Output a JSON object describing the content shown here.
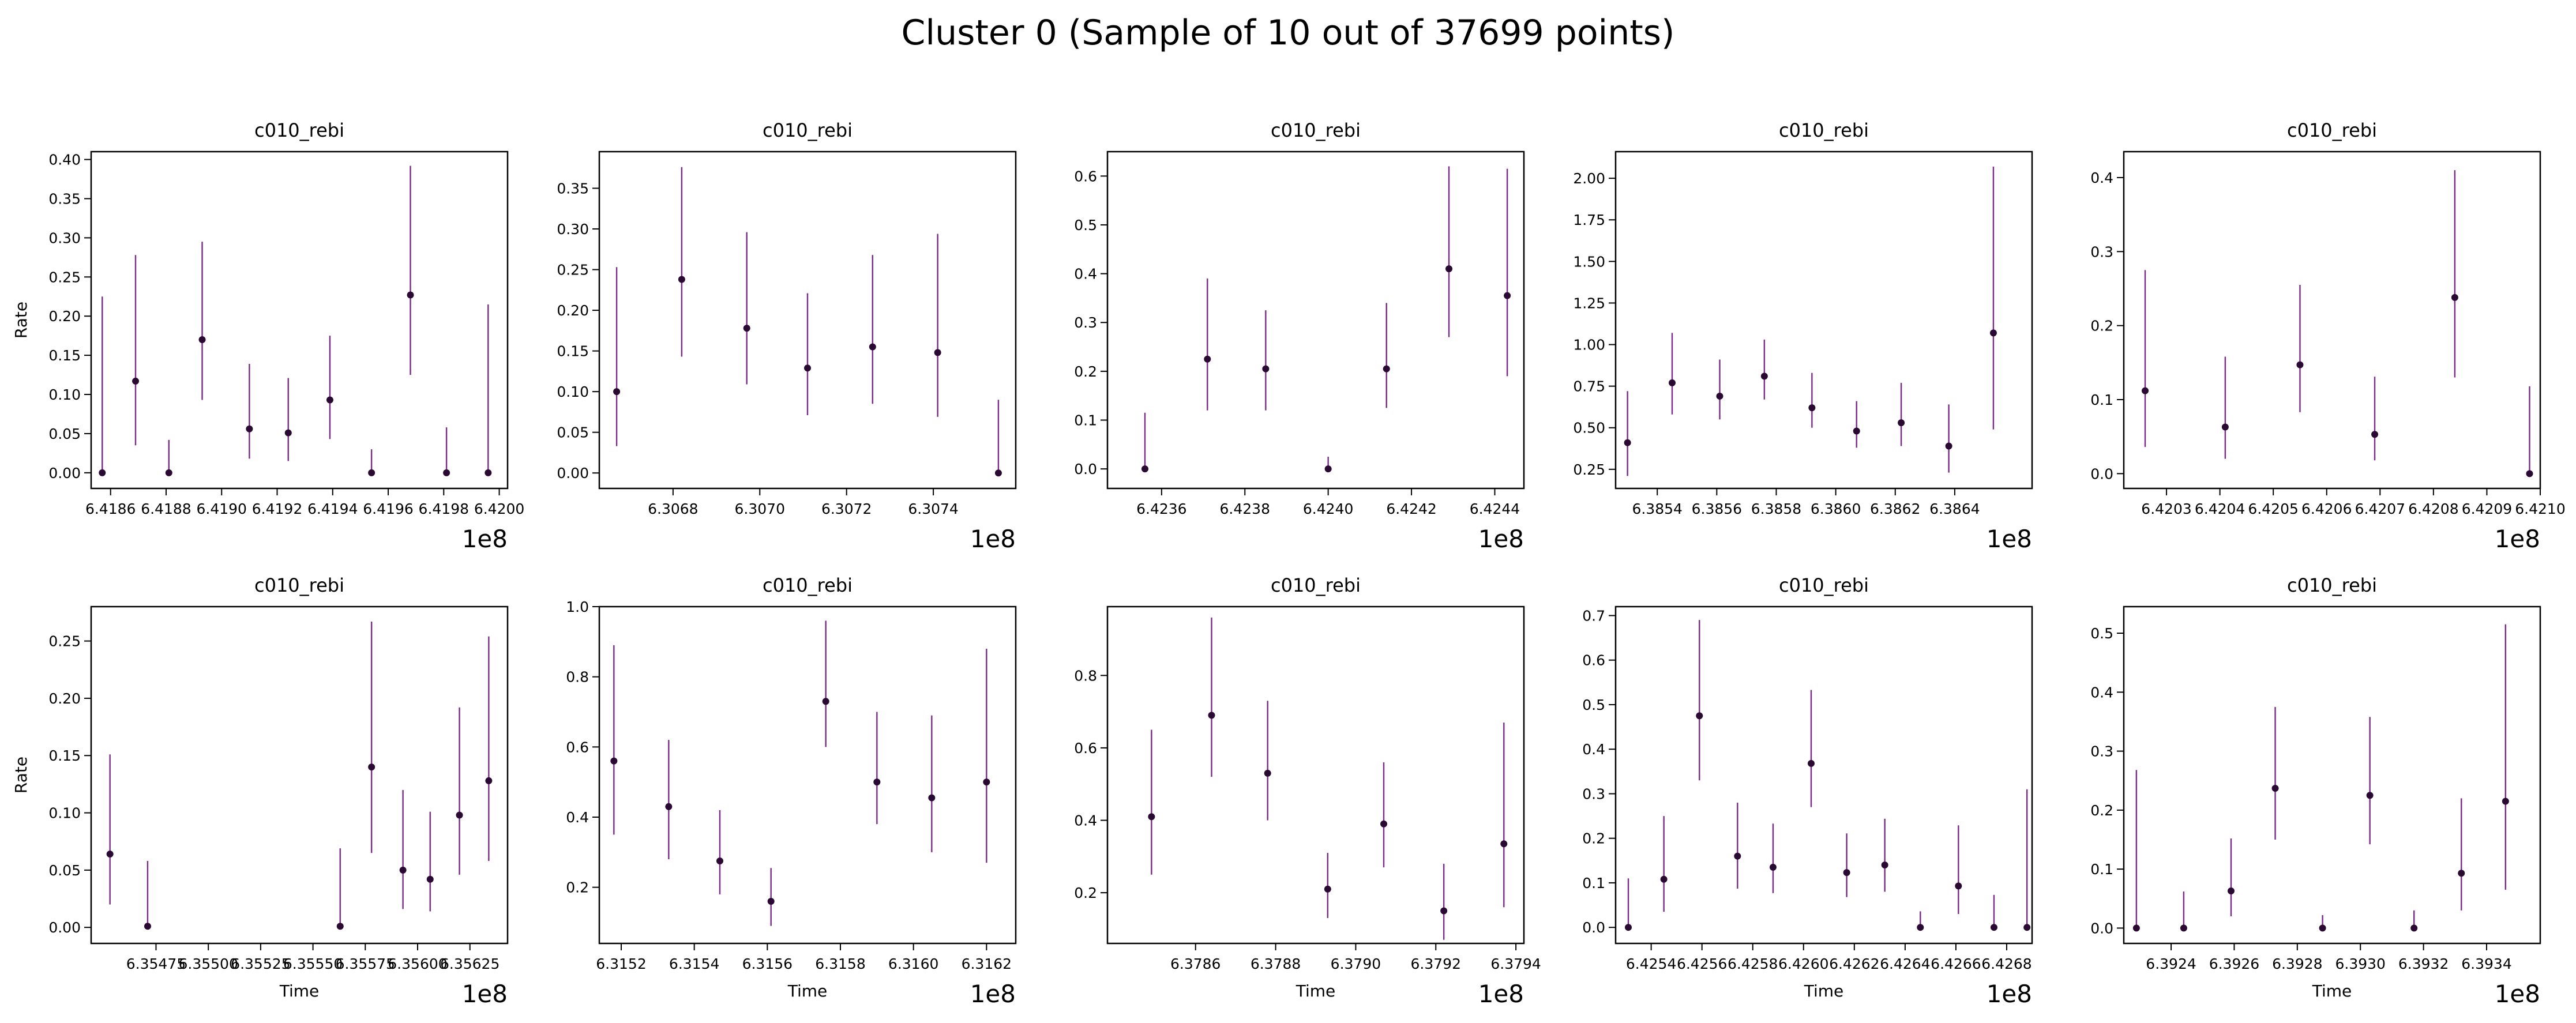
{
  "figure": {
    "title": "Cluster 0 (Sample of 10 out of 37699 points)",
    "colors": {
      "errorbar": "#7b2a8a",
      "point": "#2a0a33",
      "axis": "#000000"
    }
  },
  "chart_data": [
    {
      "type": "scatter",
      "title": "c010_rebi",
      "ylabel": "Rate",
      "xlabel": "",
      "offset_label": "1e8",
      "xlim": [
        6.41853,
        6.42003
      ],
      "ylim": [
        -0.02,
        0.41
      ],
      "xticks": [
        6.4186,
        6.4188,
        6.419,
        6.4192,
        6.4194,
        6.4196,
        6.4198,
        6.42
      ],
      "xtick_labels": [
        "6.4186",
        "6.4188",
        "6.4190",
        "6.4192",
        "6.4194",
        "6.4196",
        "6.4198",
        "6.4200"
      ],
      "yticks": [
        0,
        0.05,
        0.1,
        0.15,
        0.2,
        0.25,
        0.3,
        0.35,
        0.4
      ],
      "ytick_labels": [
        "0.00",
        "0.05",
        "0.10",
        "0.15",
        "0.20",
        "0.25",
        "0.30",
        "0.35",
        "0.40"
      ],
      "points": [
        {
          "x": 6.41857,
          "y": 0.0,
          "lo": 0.0,
          "hi": 0.225
        },
        {
          "x": 6.41869,
          "y": 0.117,
          "lo": 0.035,
          "hi": 0.278
        },
        {
          "x": 6.41881,
          "y": 0.0,
          "lo": 0.0,
          "hi": 0.042
        },
        {
          "x": 6.41893,
          "y": 0.17,
          "lo": 0.093,
          "hi": 0.295
        },
        {
          "x": 6.4191,
          "y": 0.056,
          "lo": 0.018,
          "hi": 0.139
        },
        {
          "x": 6.41924,
          "y": 0.051,
          "lo": 0.015,
          "hi": 0.121
        },
        {
          "x": 6.41939,
          "y": 0.093,
          "lo": 0.043,
          "hi": 0.175
        },
        {
          "x": 6.41954,
          "y": 0.0,
          "lo": 0.0,
          "hi": 0.03
        },
        {
          "x": 6.41968,
          "y": 0.227,
          "lo": 0.125,
          "hi": 0.392
        },
        {
          "x": 6.41981,
          "y": 0.0,
          "lo": 0.0,
          "hi": 0.058
        },
        {
          "x": 6.41996,
          "y": 0.0,
          "lo": 0.0,
          "hi": 0.215
        }
      ]
    },
    {
      "type": "scatter",
      "title": "c010_rebi",
      "ylabel": "",
      "xlabel": "",
      "offset_label": "1e8",
      "xlim": [
        6.30663,
        6.30759
      ],
      "ylim": [
        -0.019,
        0.395
      ],
      "xticks": [
        6.3068,
        6.307,
        6.3072,
        6.3074
      ],
      "xtick_labels": [
        "6.3068",
        "6.3070",
        "6.3072",
        "6.3074"
      ],
      "yticks": [
        0,
        0.05,
        0.1,
        0.15,
        0.2,
        0.25,
        0.3,
        0.35
      ],
      "ytick_labels": [
        "0.00",
        "0.05",
        "0.10",
        "0.15",
        "0.20",
        "0.25",
        "0.30",
        "0.35"
      ],
      "points": [
        {
          "x": 6.30667,
          "y": 0.1,
          "lo": 0.033,
          "hi": 0.253
        },
        {
          "x": 6.30682,
          "y": 0.238,
          "lo": 0.143,
          "hi": 0.376
        },
        {
          "x": 6.30697,
          "y": 0.178,
          "lo": 0.109,
          "hi": 0.296
        },
        {
          "x": 6.30711,
          "y": 0.129,
          "lo": 0.071,
          "hi": 0.221
        },
        {
          "x": 6.30726,
          "y": 0.155,
          "lo": 0.085,
          "hi": 0.268
        },
        {
          "x": 6.30741,
          "y": 0.148,
          "lo": 0.069,
          "hi": 0.294
        },
        {
          "x": 6.30755,
          "y": 0.0,
          "lo": 0.0,
          "hi": 0.09
        }
      ]
    },
    {
      "type": "scatter",
      "title": "c010_rebi",
      "ylabel": "",
      "xlabel": "",
      "offset_label": "1e8",
      "xlim": [
        6.42347,
        6.42447
      ],
      "ylim": [
        -0.04,
        0.65
      ],
      "xticks": [
        6.4236,
        6.4238,
        6.424,
        6.4242,
        6.4244
      ],
      "xtick_labels": [
        "6.4236",
        "6.4238",
        "6.4240",
        "6.4242",
        "6.4244"
      ],
      "yticks": [
        0,
        0.1,
        0.2,
        0.3,
        0.4,
        0.5,
        0.6
      ],
      "ytick_labels": [
        "0.0",
        "0.1",
        "0.2",
        "0.3",
        "0.4",
        "0.5",
        "0.6"
      ],
      "points": [
        {
          "x": 6.42356,
          "y": 0.0,
          "lo": 0.0,
          "hi": 0.115
        },
        {
          "x": 6.42371,
          "y": 0.225,
          "lo": 0.12,
          "hi": 0.39
        },
        {
          "x": 6.42385,
          "y": 0.205,
          "lo": 0.12,
          "hi": 0.325
        },
        {
          "x": 6.424,
          "y": 0.0,
          "lo": 0.0,
          "hi": 0.025
        },
        {
          "x": 6.42414,
          "y": 0.205,
          "lo": 0.125,
          "hi": 0.34
        },
        {
          "x": 6.42429,
          "y": 0.41,
          "lo": 0.27,
          "hi": 0.62
        },
        {
          "x": 6.42443,
          "y": 0.355,
          "lo": 0.19,
          "hi": 0.615
        }
      ]
    },
    {
      "type": "scatter",
      "title": "c010_rebi",
      "ylabel": "",
      "xlabel": "",
      "offset_label": "1e8",
      "xlim": [
        6.38526,
        6.38666
      ],
      "ylim": [
        0.135,
        2.16
      ],
      "xticks": [
        6.3854,
        6.3856,
        6.3858,
        6.386,
        6.3862,
        6.3864
      ],
      "xtick_labels": [
        "6.3854",
        "6.3856",
        "6.3858",
        "6.3860",
        "6.3862",
        "6.3864"
      ],
      "yticks": [
        0.25,
        0.5,
        0.75,
        1.0,
        1.25,
        1.5,
        1.75,
        2.0
      ],
      "ytick_labels": [
        "0.25",
        "0.50",
        "0.75",
        "1.00",
        "1.25",
        "1.50",
        "1.75",
        "2.00"
      ],
      "points": [
        {
          "x": 6.3853,
          "y": 0.41,
          "lo": 0.21,
          "hi": 0.72
        },
        {
          "x": 6.38545,
          "y": 0.77,
          "lo": 0.58,
          "hi": 1.07
        },
        {
          "x": 6.38561,
          "y": 0.69,
          "lo": 0.55,
          "hi": 0.91
        },
        {
          "x": 6.38576,
          "y": 0.81,
          "lo": 0.67,
          "hi": 1.03
        },
        {
          "x": 6.38592,
          "y": 0.62,
          "lo": 0.5,
          "hi": 0.83
        },
        {
          "x": 6.38607,
          "y": 0.48,
          "lo": 0.38,
          "hi": 0.66
        },
        {
          "x": 6.38622,
          "y": 0.53,
          "lo": 0.39,
          "hi": 0.77
        },
        {
          "x": 6.38638,
          "y": 0.39,
          "lo": 0.23,
          "hi": 0.64
        },
        {
          "x": 6.38653,
          "y": 1.07,
          "lo": 0.49,
          "hi": 2.07
        }
      ]
    },
    {
      "type": "scatter",
      "title": "c010_rebi",
      "ylabel": "",
      "xlabel": "",
      "offset_label": "1e8",
      "xlim": [
        6.42022,
        6.421
      ],
      "ylim": [
        -0.02,
        0.435
      ],
      "xticks": [
        6.4203,
        6.4204,
        6.4205,
        6.4206,
        6.4207,
        6.4208,
        6.4209,
        6.421
      ],
      "xtick_labels": [
        "6.4203",
        "6.4204",
        "6.4205",
        "6.4206",
        "6.4207",
        "6.4208",
        "6.4209",
        "6.4210"
      ],
      "yticks": [
        0,
        0.1,
        0.2,
        0.3,
        0.4
      ],
      "ytick_labels": [
        "0.0",
        "0.1",
        "0.2",
        "0.3",
        "0.4"
      ],
      "points": [
        {
          "x": 6.42026,
          "y": 0.112,
          "lo": 0.036,
          "hi": 0.275
        },
        {
          "x": 6.42041,
          "y": 0.063,
          "lo": 0.02,
          "hi": 0.158
        },
        {
          "x": 6.42055,
          "y": 0.147,
          "lo": 0.083,
          "hi": 0.255
        },
        {
          "x": 6.42069,
          "y": 0.053,
          "lo": 0.018,
          "hi": 0.131
        },
        {
          "x": 6.42084,
          "y": 0.238,
          "lo": 0.13,
          "hi": 0.41
        },
        {
          "x": 6.42098,
          "y": 0.0,
          "lo": 0.0,
          "hi": 0.118
        }
      ]
    },
    {
      "type": "scatter",
      "title": "c010_rebi",
      "ylabel": "Rate",
      "xlabel": "Time",
      "offset_label": "1e8",
      "xlim": [
        6.35444,
        6.35643
      ],
      "ylim": [
        -0.014,
        0.28
      ],
      "xticks": [
        6.35475,
        6.355,
        6.35525,
        6.3555,
        6.35575,
        6.356,
        6.35625
      ],
      "xtick_labels": [
        "6.35475",
        "6.35500",
        "6.35525",
        "6.35550",
        "6.35575",
        "6.35600",
        "6.35625"
      ],
      "yticks": [
        0,
        0.05,
        0.1,
        0.15,
        0.2,
        0.25
      ],
      "ytick_labels": [
        "0.00",
        "0.05",
        "0.10",
        "0.15",
        "0.20",
        "0.25"
      ],
      "points": [
        {
          "x": 6.35453,
          "y": 0.064,
          "lo": 0.02,
          "hi": 0.151
        },
        {
          "x": 6.35471,
          "y": 0.001,
          "lo": 0.0,
          "hi": 0.058
        },
        {
          "x": 6.35563,
          "y": 0.001,
          "lo": 0.0,
          "hi": 0.069
        },
        {
          "x": 6.35578,
          "y": 0.14,
          "lo": 0.065,
          "hi": 0.267
        },
        {
          "x": 6.35593,
          "y": 0.05,
          "lo": 0.016,
          "hi": 0.12
        },
        {
          "x": 6.35606,
          "y": 0.042,
          "lo": 0.014,
          "hi": 0.101
        },
        {
          "x": 6.3562,
          "y": 0.098,
          "lo": 0.046,
          "hi": 0.192
        },
        {
          "x": 6.35634,
          "y": 0.128,
          "lo": 0.058,
          "hi": 0.254
        }
      ]
    },
    {
      "type": "scatter",
      "title": "c010_rebi",
      "ylabel": "",
      "xlabel": "Time",
      "offset_label": "1e8",
      "xlim": [
        6.31514,
        6.31628
      ],
      "ylim": [
        0.04,
        1.0
      ],
      "xticks": [
        6.3152,
        6.3154,
        6.3156,
        6.3158,
        6.316,
        6.3162
      ],
      "xtick_labels": [
        "6.3152",
        "6.3154",
        "6.3156",
        "6.3158",
        "6.3160",
        "6.3162"
      ],
      "yticks": [
        0.2,
        0.4,
        0.6,
        0.8,
        1.0
      ],
      "ytick_labels": [
        "0.2",
        "0.4",
        "0.6",
        "0.8",
        "1.0"
      ],
      "points": [
        {
          "x": 6.31518,
          "y": 0.56,
          "lo": 0.35,
          "hi": 0.89
        },
        {
          "x": 6.31533,
          "y": 0.43,
          "lo": 0.28,
          "hi": 0.62
        },
        {
          "x": 6.31547,
          "y": 0.275,
          "lo": 0.18,
          "hi": 0.42
        },
        {
          "x": 6.31561,
          "y": 0.16,
          "lo": 0.09,
          "hi": 0.255
        },
        {
          "x": 6.31576,
          "y": 0.73,
          "lo": 0.6,
          "hi": 0.96
        },
        {
          "x": 6.3159,
          "y": 0.5,
          "lo": 0.38,
          "hi": 0.7
        },
        {
          "x": 6.31605,
          "y": 0.455,
          "lo": 0.3,
          "hi": 0.69
        },
        {
          "x": 6.3162,
          "y": 0.5,
          "lo": 0.27,
          "hi": 0.88
        }
      ]
    },
    {
      "type": "scatter",
      "title": "c010_rebi",
      "ylabel": "",
      "xlabel": "Time",
      "offset_label": "1e8",
      "xlim": [
        6.37838,
        6.37942
      ],
      "ylim": [
        0.06,
        0.99
      ],
      "xticks": [
        6.3786,
        6.3788,
        6.379,
        6.3792,
        6.3794
      ],
      "xtick_labels": [
        "6.3786",
        "6.3788",
        "6.3790",
        "6.3792",
        "6.3794"
      ],
      "yticks": [
        0.2,
        0.4,
        0.6,
        0.8
      ],
      "ytick_labels": [
        "0.2",
        "0.4",
        "0.6",
        "0.8"
      ],
      "points": [
        {
          "x": 6.37849,
          "y": 0.41,
          "lo": 0.25,
          "hi": 0.65
        },
        {
          "x": 6.37864,
          "y": 0.69,
          "lo": 0.52,
          "hi": 0.96
        },
        {
          "x": 6.37878,
          "y": 0.53,
          "lo": 0.4,
          "hi": 0.73
        },
        {
          "x": 6.37893,
          "y": 0.21,
          "lo": 0.13,
          "hi": 0.31
        },
        {
          "x": 6.37907,
          "y": 0.39,
          "lo": 0.27,
          "hi": 0.56
        },
        {
          "x": 6.37922,
          "y": 0.15,
          "lo": 0.07,
          "hi": 0.28
        },
        {
          "x": 6.37937,
          "y": 0.335,
          "lo": 0.16,
          "hi": 0.67
        }
      ]
    },
    {
      "type": "scatter",
      "title": "c010_rebi",
      "ylabel": "",
      "xlabel": "Time",
      "offset_label": "1e8",
      "xlim": [
        6.42526,
        6.4269
      ],
      "ylim": [
        -0.036,
        0.72
      ],
      "xticks": [
        6.4254,
        6.4256,
        6.4258,
        6.426,
        6.4262,
        6.4264,
        6.4266,
        6.4268
      ],
      "xtick_labels": [
        "6.4254",
        "6.4256",
        "6.4258",
        "6.4260",
        "6.4262",
        "6.4264",
        "6.4266",
        "6.4268"
      ],
      "yticks": [
        0,
        0.1,
        0.2,
        0.3,
        0.4,
        0.5,
        0.6,
        0.7
      ],
      "ytick_labels": [
        "0.0",
        "0.1",
        "0.2",
        "0.3",
        "0.4",
        "0.5",
        "0.6",
        "0.7"
      ],
      "points": [
        {
          "x": 6.42531,
          "y": 0.0,
          "lo": 0.0,
          "hi": 0.11
        },
        {
          "x": 6.42545,
          "y": 0.108,
          "lo": 0.035,
          "hi": 0.25
        },
        {
          "x": 6.42559,
          "y": 0.475,
          "lo": 0.33,
          "hi": 0.69
        },
        {
          "x": 6.42574,
          "y": 0.16,
          "lo": 0.087,
          "hi": 0.28
        },
        {
          "x": 6.42588,
          "y": 0.135,
          "lo": 0.077,
          "hi": 0.233
        },
        {
          "x": 6.42603,
          "y": 0.368,
          "lo": 0.27,
          "hi": 0.533
        },
        {
          "x": 6.42617,
          "y": 0.123,
          "lo": 0.068,
          "hi": 0.211
        },
        {
          "x": 6.42632,
          "y": 0.14,
          "lo": 0.08,
          "hi": 0.244
        },
        {
          "x": 6.42646,
          "y": 0.0,
          "lo": 0.0,
          "hi": 0.036
        },
        {
          "x": 6.42661,
          "y": 0.093,
          "lo": 0.03,
          "hi": 0.229
        },
        {
          "x": 6.42675,
          "y": 0.0,
          "lo": 0.0,
          "hi": 0.073
        },
        {
          "x": 6.42688,
          "y": 0.0,
          "lo": 0.0,
          "hi": 0.31
        }
      ]
    },
    {
      "type": "scatter",
      "title": "c010_rebi",
      "ylabel": "",
      "xlabel": "Time",
      "offset_label": "1e8",
      "xlim": [
        6.39225,
        6.39357
      ],
      "ylim": [
        -0.026,
        0.545
      ],
      "xticks": [
        6.3924,
        6.3926,
        6.3928,
        6.393,
        6.3932,
        6.3934
      ],
      "xtick_labels": [
        "6.3924",
        "6.3926",
        "6.3928",
        "6.3930",
        "6.3932",
        "6.3934"
      ],
      "yticks": [
        0,
        0.1,
        0.2,
        0.3,
        0.4,
        0.5
      ],
      "ytick_labels": [
        "0.0",
        "0.1",
        "0.2",
        "0.3",
        "0.4",
        "0.5"
      ],
      "points": [
        {
          "x": 6.39229,
          "y": 0.0,
          "lo": 0.0,
          "hi": 0.268
        },
        {
          "x": 6.39244,
          "y": 0.0,
          "lo": 0.0,
          "hi": 0.062
        },
        {
          "x": 6.39259,
          "y": 0.063,
          "lo": 0.02,
          "hi": 0.152
        },
        {
          "x": 6.39273,
          "y": 0.237,
          "lo": 0.15,
          "hi": 0.375
        },
        {
          "x": 6.39288,
          "y": 0.0,
          "lo": 0.0,
          "hi": 0.022
        },
        {
          "x": 6.39303,
          "y": 0.225,
          "lo": 0.142,
          "hi": 0.358
        },
        {
          "x": 6.39317,
          "y": 0.0,
          "lo": 0.0,
          "hi": 0.03
        },
        {
          "x": 6.39332,
          "y": 0.093,
          "lo": 0.03,
          "hi": 0.22
        },
        {
          "x": 6.39346,
          "y": 0.215,
          "lo": 0.065,
          "hi": 0.515
        }
      ]
    }
  ]
}
